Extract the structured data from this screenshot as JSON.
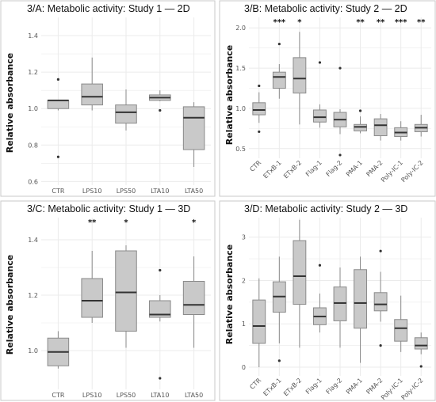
{
  "chart_data": [
    {
      "type": "boxplot",
      "title": "3/A: Metabolic activity: Study 1 — 2D",
      "ylabel": "Relative absorbance",
      "ylim": [
        0.58,
        1.5
      ],
      "yticks": [
        0.6,
        0.8,
        1.0,
        1.2,
        1.4
      ],
      "ytick_labels": [
        "0.6",
        "0.8",
        "1.0",
        "1.2",
        "1.4"
      ],
      "categories": [
        "CTR",
        "LPS10",
        "LPS50",
        "LTA10",
        "LTA50"
      ],
      "boxes": [
        {
          "whisker_low": 0.99,
          "q1": 1.0,
          "median": 1.045,
          "q3": 1.045,
          "whisker_high": 1.045,
          "outliers": [
            0.735,
            1.16
          ]
        },
        {
          "whisker_low": 0.99,
          "q1": 1.02,
          "median": 1.065,
          "q3": 1.135,
          "whisker_high": 1.28,
          "outliers": []
        },
        {
          "whisker_low": 0.88,
          "q1": 0.92,
          "median": 0.98,
          "q3": 1.02,
          "whisker_high": 1.105,
          "outliers": []
        },
        {
          "whisker_low": 1.04,
          "q1": 1.045,
          "median": 1.06,
          "q3": 1.075,
          "whisker_high": 1.1,
          "outliers": [
            0.99
          ]
        },
        {
          "whisker_low": 0.68,
          "q1": 0.775,
          "median": 0.95,
          "q3": 1.01,
          "whisker_high": 1.035,
          "outliers": []
        }
      ],
      "significance": [
        "",
        "",
        "",
        "",
        ""
      ]
    },
    {
      "type": "boxplot",
      "title": "3/B: Metabolic activity: Study 2 — 2D",
      "ylabel": "Relative absorbance",
      "ylim": [
        0.38,
        2.13
      ],
      "yticks": [
        0.5,
        1.0,
        1.5,
        2.0
      ],
      "ytick_labels": [
        "0.5",
        "1.0",
        "1.5",
        "2.0"
      ],
      "categories": [
        "CTR",
        "ETxB-1",
        "ETxB-2",
        "Flag-1",
        "Flag-2",
        "PMA-1",
        "PMA-2",
        "Poly-IC-1",
        "Poly-IC-2"
      ],
      "boxes": [
        {
          "whisker_low": 0.82,
          "q1": 0.92,
          "median": 0.98,
          "q3": 1.07,
          "whisker_high": 1.2,
          "outliers": [
            0.71,
            1.28
          ]
        },
        {
          "whisker_low": 1.12,
          "q1": 1.25,
          "median": 1.39,
          "q3": 1.45,
          "whisker_high": 1.55,
          "outliers": [
            1.8
          ]
        },
        {
          "whisker_low": 0.8,
          "q1": 1.19,
          "median": 1.37,
          "q3": 1.63,
          "whisker_high": 1.95,
          "outliers": []
        },
        {
          "whisker_low": 0.76,
          "q1": 0.83,
          "median": 0.89,
          "q3": 0.98,
          "whisker_high": 1.05,
          "outliers": [
            1.57
          ]
        },
        {
          "whisker_low": 0.68,
          "q1": 0.77,
          "median": 0.86,
          "q3": 0.95,
          "whisker_high": 0.99,
          "outliers": [
            0.42,
            1.5
          ]
        },
        {
          "whisker_low": 0.69,
          "q1": 0.72,
          "median": 0.77,
          "q3": 0.8,
          "whisker_high": 0.9,
          "outliers": [
            0.97
          ]
        },
        {
          "whisker_low": 0.6,
          "q1": 0.66,
          "median": 0.79,
          "q3": 0.87,
          "whisker_high": 0.93,
          "outliers": []
        },
        {
          "whisker_low": 0.6,
          "q1": 0.65,
          "median": 0.7,
          "q3": 0.76,
          "whisker_high": 0.84,
          "outliers": []
        },
        {
          "whisker_low": 0.65,
          "q1": 0.71,
          "median": 0.76,
          "q3": 0.8,
          "whisker_high": 0.92,
          "outliers": []
        }
      ],
      "significance": [
        "",
        "***",
        "*",
        "",
        "",
        "**",
        "**",
        "***",
        "**"
      ]
    },
    {
      "type": "boxplot",
      "title": "3/C: Metabolic activity: Study 1 — 3D",
      "ylabel": "Relative absorbance",
      "ylim": [
        0.86,
        1.48
      ],
      "yticks": [
        1.0,
        1.2,
        1.4
      ],
      "ytick_labels": [
        "1.0",
        "1.2",
        "1.4"
      ],
      "categories": [
        "CTR",
        "LPS10",
        "LPS50",
        "LTA10",
        "LTA50"
      ],
      "boxes": [
        {
          "whisker_low": 0.935,
          "q1": 0.945,
          "median": 0.995,
          "q3": 1.045,
          "whisker_high": 1.07,
          "outliers": []
        },
        {
          "whisker_low": 1.1,
          "q1": 1.12,
          "median": 1.18,
          "q3": 1.26,
          "whisker_high": 1.36,
          "outliers": []
        },
        {
          "whisker_low": 1.01,
          "q1": 1.07,
          "median": 1.21,
          "q3": 1.36,
          "whisker_high": 1.38,
          "outliers": []
        },
        {
          "whisker_low": 1.105,
          "q1": 1.12,
          "median": 1.13,
          "q3": 1.18,
          "whisker_high": 1.2,
          "outliers": [
            0.9,
            1.29
          ]
        },
        {
          "whisker_low": 1.01,
          "q1": 1.13,
          "median": 1.165,
          "q3": 1.25,
          "whisker_high": 1.34,
          "outliers": []
        }
      ],
      "significance": [
        "",
        "**",
        "*",
        "",
        "*"
      ]
    },
    {
      "type": "boxplot",
      "title": "3/D: Metabolic activity: Study 2 — 3D",
      "ylabel": "Relative absorbance",
      "ylim": [
        -0.2,
        3.45
      ],
      "yticks": [
        0,
        1,
        2,
        3
      ],
      "ytick_labels": [
        "0",
        "1",
        "2",
        "3"
      ],
      "categories": [
        "CTR",
        "ETxB-1",
        "ETxB-2",
        "Flag-1",
        "Flag-2",
        "PMA-1",
        "PMA-2",
        "Poly-IC-1",
        "Poly-IC-2"
      ],
      "boxes": [
        {
          "whisker_low": 0.0,
          "q1": 0.55,
          "median": 0.95,
          "q3": 1.55,
          "whisker_high": 2.05,
          "outliers": []
        },
        {
          "whisker_low": 0.55,
          "q1": 1.27,
          "median": 1.63,
          "q3": 1.97,
          "whisker_high": 2.55,
          "outliers": [
            0.15
          ]
        },
        {
          "whisker_low": 0.45,
          "q1": 1.45,
          "median": 2.1,
          "q3": 2.92,
          "whisker_high": 3.4,
          "outliers": []
        },
        {
          "whisker_low": 0.8,
          "q1": 0.98,
          "median": 1.17,
          "q3": 1.37,
          "whisker_high": 1.7,
          "outliers": [
            2.35
          ]
        },
        {
          "whisker_low": 0.45,
          "q1": 1.07,
          "median": 1.48,
          "q3": 1.85,
          "whisker_high": 2.3,
          "outliers": []
        },
        {
          "whisker_low": 0.1,
          "q1": 0.9,
          "median": 1.48,
          "q3": 2.25,
          "whisker_high": 2.55,
          "outliers": []
        },
        {
          "whisker_low": 1.05,
          "q1": 1.3,
          "median": 1.45,
          "q3": 1.72,
          "whisker_high": 2.2,
          "outliers": [
            0.5,
            2.68
          ]
        },
        {
          "whisker_low": 0.35,
          "q1": 0.6,
          "median": 0.9,
          "q3": 1.1,
          "whisker_high": 1.65,
          "outliers": []
        },
        {
          "whisker_low": 0.3,
          "q1": 0.42,
          "median": 0.5,
          "q3": 0.68,
          "whisker_high": 0.8,
          "outliers": [
            0.02
          ]
        }
      ],
      "significance": [
        "",
        "",
        "",
        "",
        "",
        "",
        "",
        "",
        ""
      ]
    }
  ],
  "colors": {
    "box_fill": "#c9c9c9",
    "box_stroke": "#8a8a8a",
    "median": "#333333",
    "whisker": "#8a8a8a",
    "outlier": "#333333",
    "grid": "#ebebeb",
    "panel_border": "#c8c8c8"
  }
}
